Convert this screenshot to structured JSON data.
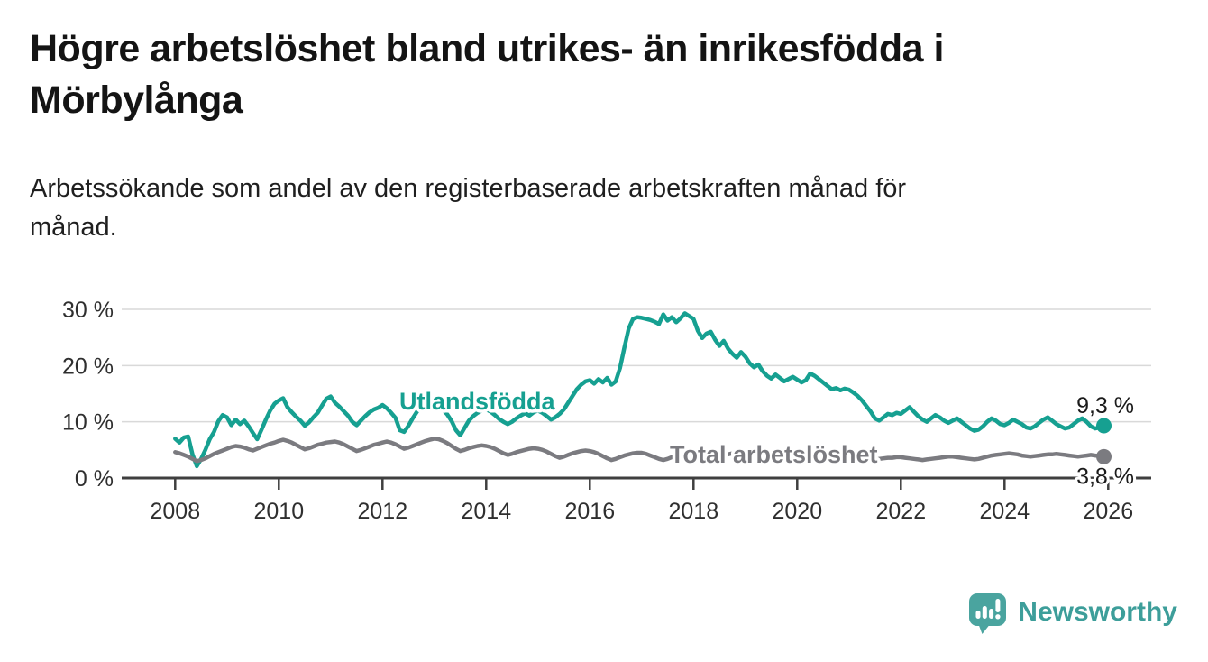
{
  "header": {
    "title": "Högre arbetslöshet bland utrikes- än inrikesfödda i Mörbylånga",
    "subtitle": "Arbetssökande som andel av den registerbaserade arbetskraften månad för månad."
  },
  "chart_data": {
    "type": "line",
    "title": "Högre arbetslöshet bland utrikes- än inrikesfödda i Mörbylånga",
    "subtitle": "Arbetssökande som andel av den registerbaserade arbetskraften månad för månad.",
    "xlabel": "",
    "ylabel": "",
    "unit": "%",
    "x_start_year": 2008,
    "x_resolution": "monthly",
    "xticks": [
      2008,
      2010,
      2012,
      2014,
      2016,
      2018,
      2020,
      2022,
      2024,
      2026
    ],
    "yticks": [
      {
        "value": 0,
        "label": "0 %"
      },
      {
        "value": 10,
        "label": "10 %"
      },
      {
        "value": 20,
        "label": "20 %"
      },
      {
        "value": 30,
        "label": "30 %"
      }
    ],
    "ylim": [
      0,
      31
    ],
    "grid": true,
    "legend": "inline-labels",
    "series": [
      {
        "name": "Utlandsfödda",
        "color": "#16a091",
        "end_label": "9,3 %",
        "end_value": 9.3,
        "values": [
          7.0,
          6.3,
          7.2,
          7.4,
          4.2,
          2.1,
          3.4,
          5.0,
          6.9,
          8.2,
          10.1,
          11.2,
          10.8,
          9.4,
          10.4,
          9.6,
          10.2,
          9.2,
          8.0,
          6.9,
          8.6,
          10.4,
          12.0,
          13.2,
          13.8,
          14.2,
          12.6,
          11.7,
          10.9,
          10.2,
          9.3,
          9.9,
          10.8,
          11.6,
          12.9,
          14.1,
          14.5,
          13.4,
          12.7,
          11.9,
          11.1,
          10.0,
          9.4,
          10.2,
          11.0,
          11.7,
          12.2,
          12.5,
          13.0,
          12.4,
          11.6,
          10.7,
          8.5,
          8.2,
          9.3,
          10.6,
          11.8,
          13.0,
          14.0,
          14.6,
          14.1,
          13.0,
          12.1,
          11.3,
          10.1,
          8.5,
          7.6,
          8.9,
          10.2,
          11.0,
          11.6,
          12.0,
          12.2,
          11.8,
          11.2,
          10.5,
          10.0,
          9.6,
          10.0,
          10.6,
          11.1,
          11.5,
          11.1,
          11.7,
          12.0,
          11.6,
          11.0,
          10.4,
          10.8,
          11.4,
          12.2,
          13.4,
          14.6,
          15.8,
          16.6,
          17.2,
          17.4,
          16.8,
          17.6,
          17.0,
          17.8,
          16.6,
          17.2,
          19.6,
          23.2,
          26.6,
          28.3,
          28.6,
          28.5,
          28.3,
          28.1,
          27.8,
          27.4,
          29.1,
          28.0,
          28.6,
          27.7,
          28.4,
          29.3,
          28.8,
          28.3,
          26.2,
          24.9,
          25.7,
          26.0,
          24.6,
          23.5,
          24.4,
          23.0,
          22.1,
          21.4,
          22.4,
          21.6,
          20.4,
          19.7,
          20.2,
          19.0,
          18.2,
          17.7,
          18.4,
          17.8,
          17.2,
          17.6,
          18.0,
          17.5,
          17.0,
          17.4,
          18.6,
          18.2,
          17.6,
          17.0,
          16.4,
          15.8,
          16.0,
          15.6,
          15.9,
          15.7,
          15.2,
          14.6,
          13.8,
          12.8,
          11.8,
          10.6,
          10.2,
          10.8,
          11.4,
          11.2,
          11.6,
          11.4,
          12.0,
          12.6,
          11.8,
          11.0,
          10.4,
          10.0,
          10.6,
          11.2,
          10.8,
          10.2,
          9.8,
          10.2,
          10.6,
          10.0,
          9.4,
          8.8,
          8.4,
          8.6,
          9.2,
          10.0,
          10.6,
          10.2,
          9.6,
          9.4,
          9.8,
          10.4,
          10.0,
          9.6,
          9.0,
          8.8,
          9.2,
          9.8,
          10.4,
          10.8,
          10.2,
          9.6,
          9.2,
          8.8,
          9.0,
          9.6,
          10.2,
          10.6,
          10.0,
          9.2,
          8.8,
          9.0,
          9.3
        ]
      },
      {
        "name": "Total arbetslöshet",
        "color": "#7b7b80",
        "end_label": "3,8 %",
        "end_value": 3.8,
        "values": [
          4.6,
          4.4,
          4.1,
          3.8,
          3.4,
          3.0,
          3.2,
          3.5,
          3.9,
          4.3,
          4.6,
          4.9,
          5.2,
          5.5,
          5.7,
          5.6,
          5.4,
          5.1,
          4.9,
          5.2,
          5.5,
          5.8,
          6.1,
          6.3,
          6.6,
          6.8,
          6.6,
          6.3,
          5.9,
          5.5,
          5.1,
          5.3,
          5.6,
          5.9,
          6.1,
          6.3,
          6.4,
          6.5,
          6.3,
          6.0,
          5.6,
          5.2,
          4.8,
          5.0,
          5.3,
          5.6,
          5.9,
          6.1,
          6.3,
          6.5,
          6.3,
          6.0,
          5.6,
          5.2,
          5.4,
          5.7,
          6.0,
          6.3,
          6.6,
          6.8,
          7.0,
          6.9,
          6.6,
          6.2,
          5.7,
          5.2,
          4.8,
          5.0,
          5.3,
          5.5,
          5.7,
          5.8,
          5.7,
          5.5,
          5.2,
          4.8,
          4.4,
          4.1,
          4.3,
          4.6,
          4.8,
          5.0,
          5.2,
          5.3,
          5.2,
          5.0,
          4.7,
          4.3,
          3.9,
          3.6,
          3.8,
          4.1,
          4.4,
          4.6,
          4.8,
          4.9,
          4.8,
          4.6,
          4.3,
          3.9,
          3.5,
          3.2,
          3.4,
          3.7,
          4.0,
          4.2,
          4.4,
          4.5,
          4.5,
          4.3,
          4.0,
          3.7,
          3.4,
          3.2,
          3.4,
          3.7,
          4.0,
          4.3,
          4.5,
          4.6,
          4.6,
          4.4,
          4.2,
          3.9,
          3.6,
          3.4,
          3.6,
          3.9,
          4.2,
          4.4,
          4.6,
          4.7,
          4.7,
          4.5,
          4.3,
          4.0,
          3.8,
          3.6,
          3.8,
          4.1,
          4.4,
          4.6,
          4.7,
          4.8,
          4.8,
          4.7,
          4.9,
          5.2,
          5.0,
          4.8,
          4.6,
          4.4,
          4.3,
          4.2,
          4.1,
          4.2,
          4.3,
          4.2,
          4.0,
          3.8,
          3.6,
          3.4,
          3.3,
          3.4,
          3.5,
          3.6,
          3.6,
          3.7,
          3.7,
          3.6,
          3.5,
          3.4,
          3.3,
          3.2,
          3.3,
          3.4,
          3.5,
          3.6,
          3.7,
          3.8,
          3.8,
          3.7,
          3.6,
          3.5,
          3.4,
          3.3,
          3.4,
          3.6,
          3.8,
          4.0,
          4.1,
          4.2,
          4.3,
          4.4,
          4.3,
          4.2,
          4.0,
          3.9,
          3.8,
          3.9,
          4.0,
          4.1,
          4.2,
          4.2,
          4.3,
          4.2,
          4.1,
          4.0,
          3.9,
          3.8,
          3.9,
          4.0,
          4.1,
          4.0,
          3.9,
          3.8
        ]
      }
    ]
  },
  "footer": {
    "brand": "Newsworthy",
    "logo_icon": "speech-bubble-bar-chart-icon"
  },
  "colors": {
    "series_foreign_born": "#16a091",
    "series_total": "#7b7b80",
    "axis": "#3f3f3f",
    "gridline": "#d9d9d9",
    "brand_teal": "#4aa49f",
    "text": "#141414"
  }
}
